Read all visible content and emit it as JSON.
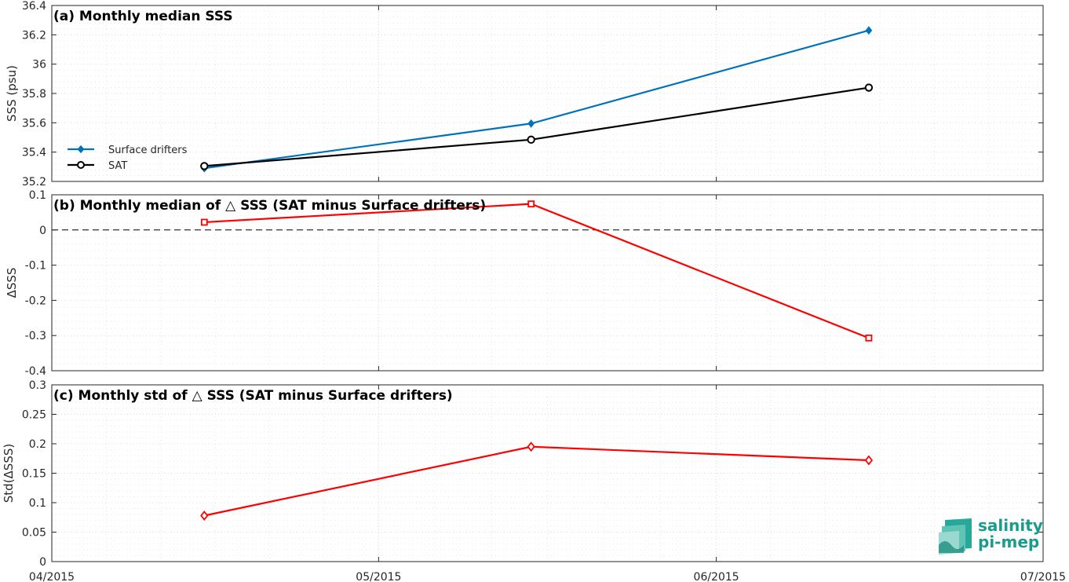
{
  "chart_data": [
    {
      "type": "line",
      "title": "(a) Monthly median SSS",
      "ylabel": "SSS (psu)",
      "ylim": [
        35.2,
        36.4
      ],
      "yticks": [
        "35.2",
        "35.4",
        "35.6",
        "35.8",
        "36",
        "36.2",
        "36.4"
      ],
      "xlim": [
        "2015-04-01",
        "2015-07-01"
      ],
      "grid": true,
      "legend_position": "lower-left",
      "series": [
        {
          "name": "Surface drifters",
          "color": "#0072bd",
          "marker": "diamond",
          "x": [
            "2015-04-15",
            "2015-05-15",
            "2015-06-15"
          ],
          "values": [
            35.29,
            35.595,
            36.23
          ]
        },
        {
          "name": "SAT",
          "color": "#000000",
          "marker": "circle",
          "x": [
            "2015-04-15",
            "2015-05-15",
            "2015-06-15"
          ],
          "values": [
            35.305,
            35.485,
            35.84
          ]
        }
      ]
    },
    {
      "type": "line",
      "title": "(b) Monthly median of △ SSS (SAT minus Surface drifters)",
      "ylabel": "ΔSSS",
      "ylim": [
        -0.4,
        0.1
      ],
      "yticks": [
        "-0.4",
        "-0.3",
        "-0.2",
        "-0.1",
        "0",
        "0.1"
      ],
      "xlim": [
        "2015-04-01",
        "2015-07-01"
      ],
      "grid": true,
      "zero_line": true,
      "series": [
        {
          "color": "#ff0000",
          "marker": "square",
          "x": [
            "2015-04-15",
            "2015-05-15",
            "2015-06-15"
          ],
          "values": [
            0.022,
            0.074,
            -0.307
          ]
        }
      ]
    },
    {
      "type": "line",
      "title": "(c) Monthly std of △ SSS (SAT minus Surface drifters)",
      "ylabel": "Std(ΔSSS)",
      "ylim": [
        0,
        0.3
      ],
      "yticks": [
        "0",
        "0.05",
        "0.1",
        "0.15",
        "0.2",
        "0.25",
        "0.3"
      ],
      "xlim": [
        "2015-04-01",
        "2015-07-01"
      ],
      "xticks": [
        "04/2015",
        "05/2015",
        "06/2015",
        "07/2015"
      ],
      "grid": true,
      "series": [
        {
          "color": "#ff0000",
          "marker": "diamond",
          "x": [
            "2015-04-15",
            "2015-05-15",
            "2015-06-15"
          ],
          "values": [
            0.078,
            0.195,
            0.172
          ]
        }
      ]
    }
  ],
  "logo": {
    "line1": "salinity",
    "line2": "pi-mep",
    "color": "#1a9c8c"
  }
}
